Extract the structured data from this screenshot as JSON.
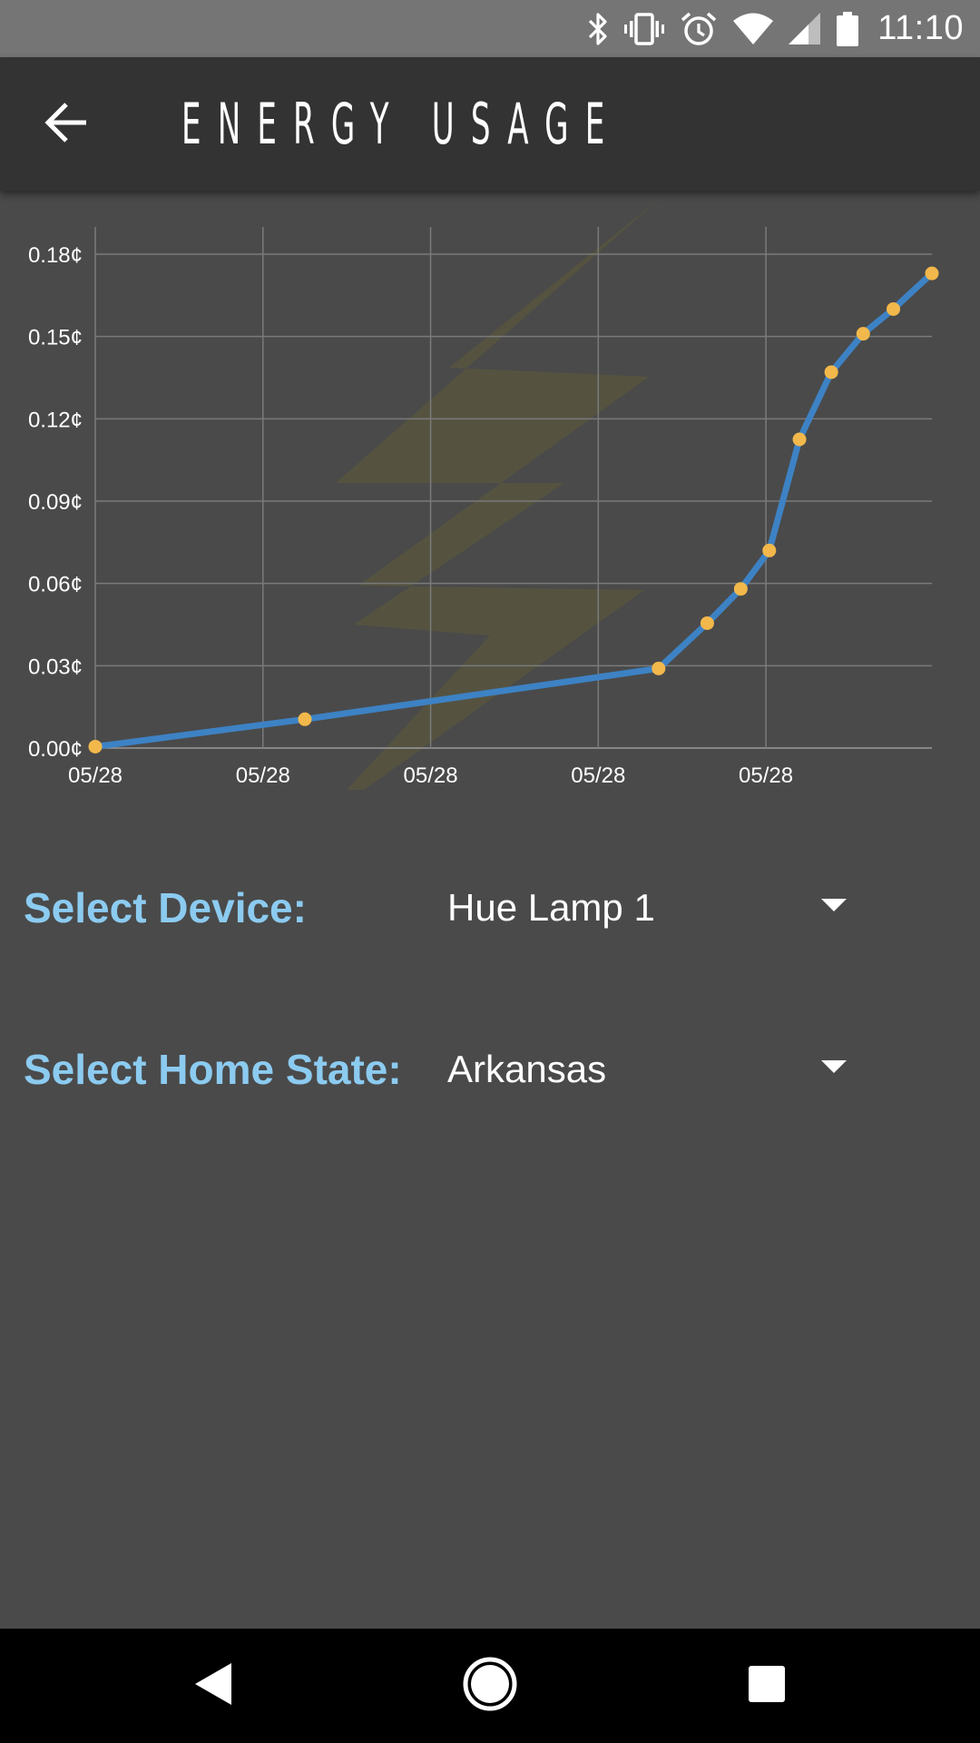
{
  "status_bar": {
    "time": "11:10",
    "icons": [
      "bluetooth-icon",
      "vibrate-icon",
      "alarm-icon",
      "wifi-icon",
      "signal-icon",
      "battery-icon"
    ]
  },
  "app_bar": {
    "title": "ENERGY USAGE",
    "back_icon": "arrow-left-icon"
  },
  "chart_data": {
    "type": "line",
    "title": "",
    "xlabel": "",
    "ylabel": "",
    "x_tick_labels": [
      "05/28",
      "05/28",
      "05/28",
      "05/28",
      "05/28"
    ],
    "y_tick_labels": [
      "0.00¢",
      "0.03¢",
      "0.06¢",
      "0.09¢",
      "0.12¢",
      "0.15¢",
      "0.18¢"
    ],
    "y_ticks": [
      0.0,
      0.03,
      0.06,
      0.09,
      0.12,
      0.15,
      0.18
    ],
    "ylim": [
      0,
      0.18
    ],
    "x_tick_index": [
      0,
      1,
      2,
      3,
      4
    ],
    "xlim": [
      0,
      4.99
    ],
    "grid": true,
    "legend": "none",
    "background_watermark": "lightning-bolt",
    "series": [
      {
        "x": [
          0.0,
          1.25,
          3.36,
          3.65,
          3.85,
          4.02,
          4.2,
          4.39,
          4.58,
          4.76,
          4.99
        ],
        "values": [
          0.0005,
          0.0105,
          0.029,
          0.0455,
          0.058,
          0.072,
          0.1125,
          0.137,
          0.151,
          0.16,
          0.173
        ]
      }
    ]
  },
  "colors": {
    "line": "#3d82c4",
    "points": "#f2b84b",
    "label_accent": "#8ccbf0",
    "watermark": "#5e5b38",
    "background": "#4a4a4a",
    "app_bar": "#333333"
  },
  "form": {
    "device": {
      "label": "Select Device:",
      "value": "Hue Lamp 1"
    },
    "state": {
      "label": "Select Home State:",
      "value": "Arkansas"
    }
  },
  "nav_bar": {
    "icons": [
      "nav-back-icon",
      "nav-home-icon",
      "nav-recents-icon"
    ]
  }
}
